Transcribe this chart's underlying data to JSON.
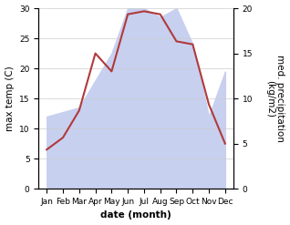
{
  "months": [
    "Jan",
    "Feb",
    "Mar",
    "Apr",
    "May",
    "Jun",
    "Jul",
    "Aug",
    "Sep",
    "Oct",
    "Nov",
    "Dec"
  ],
  "x": [
    1,
    2,
    3,
    4,
    5,
    6,
    7,
    8,
    9,
    10,
    11,
    12
  ],
  "temperature": [
    6.5,
    8.5,
    13.0,
    22.5,
    19.5,
    29.0,
    29.5,
    29.0,
    24.5,
    24.0,
    14.0,
    7.5
  ],
  "precipitation": [
    8.0,
    8.5,
    9.0,
    12.0,
    15.0,
    20.0,
    20.0,
    19.0,
    20.0,
    16.0,
    8.0,
    13.0
  ],
  "temp_color": "#b03a3a",
  "precip_fill_color": "#c8d0f0",
  "temp_ylim": [
    0,
    30
  ],
  "precip_ylim": [
    0,
    20
  ],
  "temp_yticks": [
    0,
    5,
    10,
    15,
    20,
    25,
    30
  ],
  "precip_yticks": [
    0,
    5,
    10,
    15,
    20
  ],
  "xlabel": "date (month)",
  "ylabel_left": "max temp (C)",
  "ylabel_right": "med. precipitation\n(kg/m2)",
  "axis_label_fontsize": 7.5,
  "tick_fontsize": 6.5,
  "xlim": [
    0.5,
    12.5
  ],
  "figwidth": 3.18,
  "figheight": 2.47,
  "dpi": 100
}
